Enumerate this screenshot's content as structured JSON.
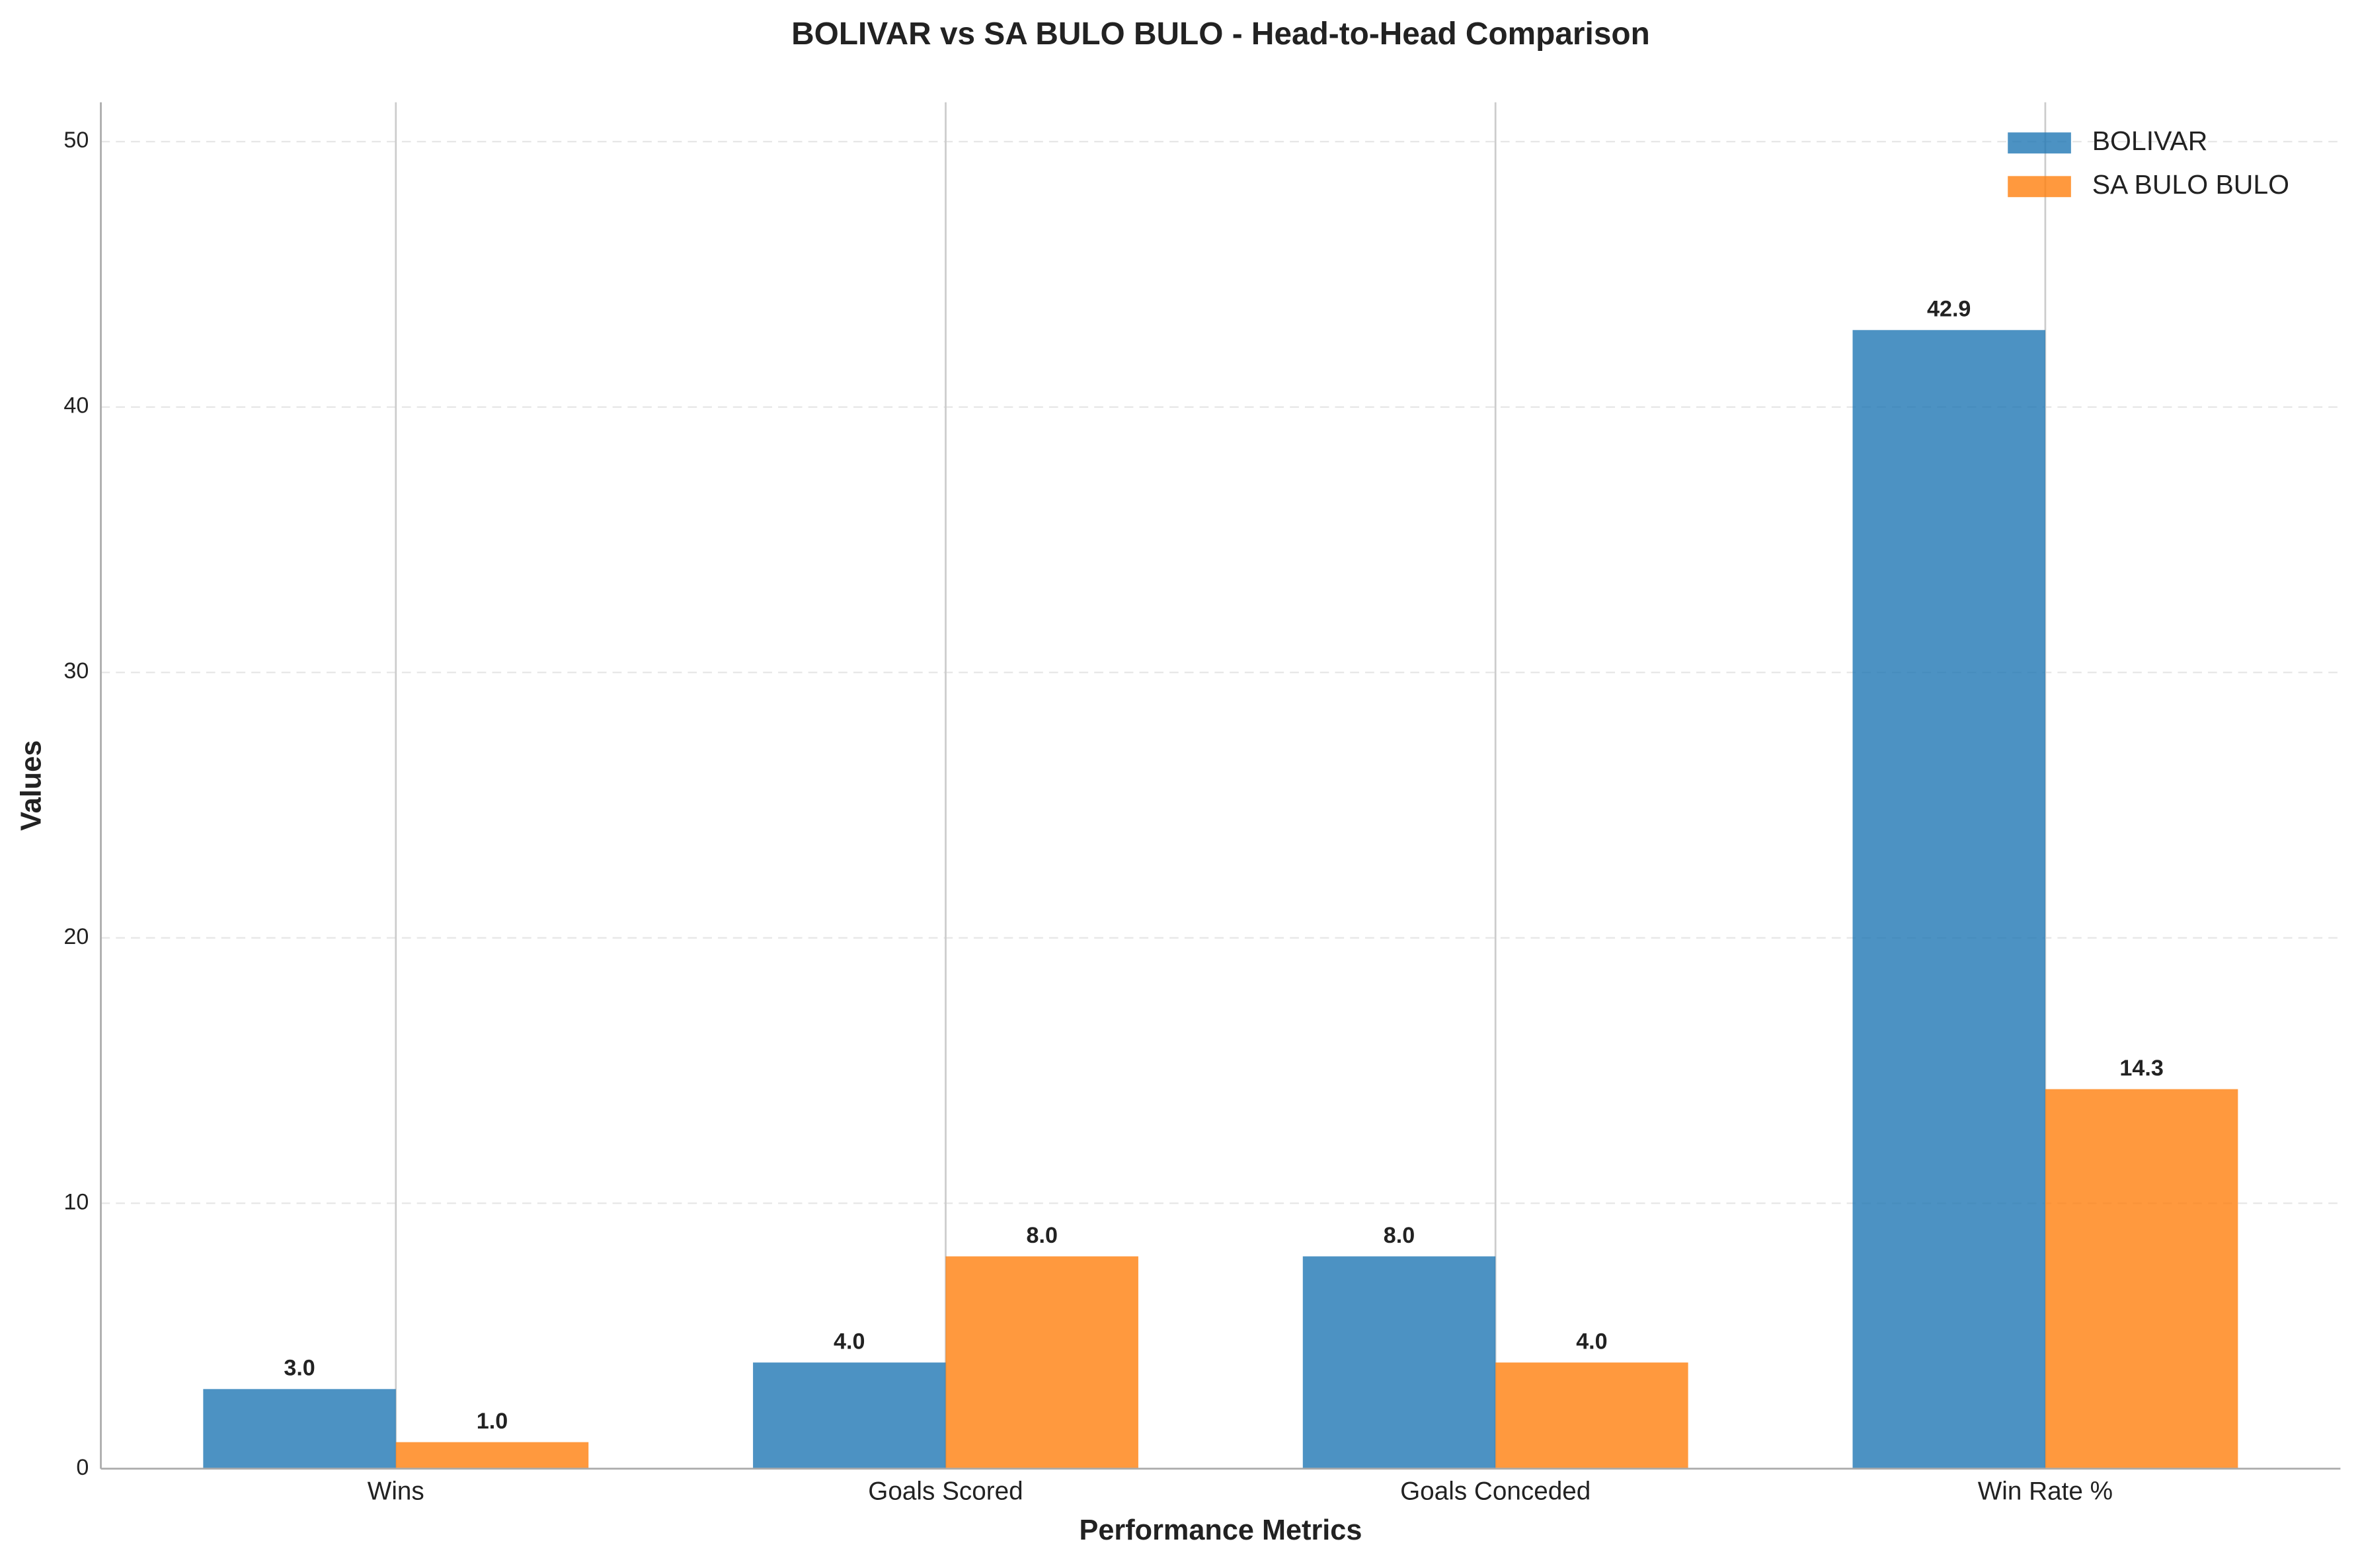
{
  "chart_data": {
    "type": "bar",
    "title": "BOLIVAR vs SA BULO BULO - Head-to-Head Comparison",
    "x_label": "Performance Metrics",
    "y_label": "Values",
    "categories": [
      "Wins",
      "Goals Scored",
      "Goals Conceded",
      "Win Rate %"
    ],
    "series": [
      {
        "name": "BOLIVAR",
        "color": "#1f77b4",
        "values": [
          3,
          4,
          8,
          42.9
        ],
        "value_labels": [
          "3.0",
          "4.0",
          "8.0",
          "42.9"
        ]
      },
      {
        "name": "SA BULO BULO",
        "color": "#ff7f0e",
        "values": [
          1,
          8,
          4,
          14.3
        ],
        "value_labels": [
          "1.0",
          "8.0",
          "4.0",
          "14.3"
        ]
      }
    ],
    "ylim": [
      0,
      51.48
    ],
    "yticks": [
      0,
      10,
      20,
      30,
      40,
      50
    ],
    "grid": true,
    "legend": "upper-right"
  }
}
